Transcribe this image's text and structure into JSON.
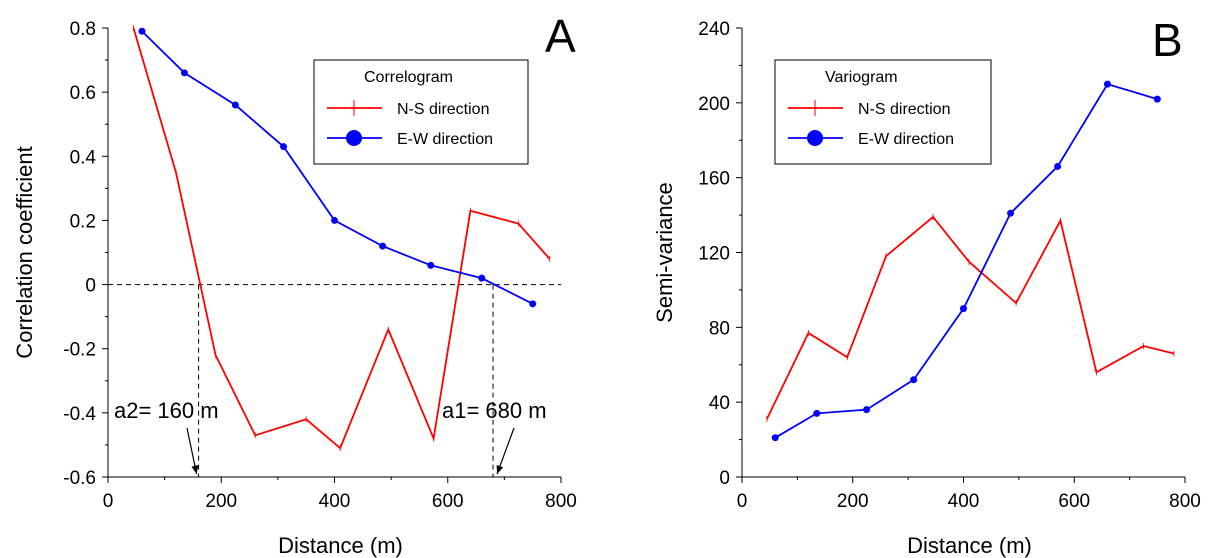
{
  "chart_data": [
    {
      "panel": "A",
      "type": "line",
      "xlabel": "Distance (m)",
      "ylabel": "Correlation coefficient",
      "xlim": [
        0,
        800
      ],
      "ylim": [
        -0.6,
        0.8
      ],
      "xticks": [
        0,
        200,
        400,
        600,
        800
      ],
      "yticks": [
        -0.6,
        -0.4,
        -0.2,
        0,
        0.2,
        0.4,
        0.6,
        0.8
      ],
      "xtick_labels": [
        "0",
        "200",
        "400",
        "600",
        "800"
      ],
      "ytick_labels": [
        "-0.6",
        "-0.4",
        "-0.2",
        "0",
        "0.2",
        "0.4",
        "0.6",
        "0.8"
      ],
      "legend": {
        "title": "Correlogram",
        "placement": "top-right"
      },
      "series": [
        {
          "name": "N-S direction",
          "color": "#ff0000",
          "marker": "plus",
          "x": [
            45,
            120,
            190,
            260,
            350,
            410,
            495,
            575,
            640,
            725,
            780
          ],
          "y": [
            0.8,
            0.35,
            -0.22,
            -0.47,
            -0.42,
            -0.51,
            -0.14,
            -0.48,
            0.23,
            0.19,
            0.08
          ]
        },
        {
          "name": "E-W direction",
          "color": "#0000ff",
          "marker": "circle",
          "x": [
            60,
            135,
            225,
            310,
            400,
            485,
            570,
            660,
            750
          ],
          "y": [
            0.79,
            0.66,
            0.56,
            0.43,
            0.2,
            0.12,
            0.06,
            0.02,
            -0.06
          ]
        }
      ],
      "reference_lines": {
        "horizontal_y": 0,
        "vertical_x": [
          160,
          680
        ]
      },
      "annotations": [
        {
          "text": "a2= 160 m",
          "x": 160
        },
        {
          "text": "a1= 680 m",
          "x": 680
        }
      ]
    },
    {
      "panel": "B",
      "type": "line",
      "xlabel": "Distance (m)",
      "ylabel": "Semi-variance",
      "xlim": [
        0,
        800
      ],
      "ylim": [
        0,
        240
      ],
      "xticks": [
        0,
        200,
        400,
        600,
        800
      ],
      "yticks": [
        0,
        40,
        80,
        120,
        160,
        200,
        240
      ],
      "xtick_labels": [
        "0",
        "200",
        "400",
        "600",
        "800"
      ],
      "ytick_labels": [
        "0",
        "40",
        "80",
        "120",
        "160",
        "200",
        "240"
      ],
      "legend": {
        "title": "Variogram",
        "placement": "top-left"
      },
      "series": [
        {
          "name": "N-S direction",
          "color": "#ff0000",
          "marker": "plus",
          "x": [
            45,
            120,
            190,
            260,
            345,
            410,
            495,
            575,
            640,
            725,
            780
          ],
          "y": [
            31,
            77,
            64,
            118,
            139,
            115,
            93,
            137,
            56,
            70,
            66
          ]
        },
        {
          "name": "E-W direction",
          "color": "#0000ff",
          "marker": "circle",
          "x": [
            60,
            135,
            225,
            310,
            400,
            485,
            570,
            660,
            750
          ],
          "y": [
            21,
            34,
            36,
            52,
            90,
            141,
            166,
            210,
            202
          ]
        }
      ]
    }
  ],
  "panels": [
    {
      "letter": "A"
    },
    {
      "letter": "B"
    }
  ]
}
